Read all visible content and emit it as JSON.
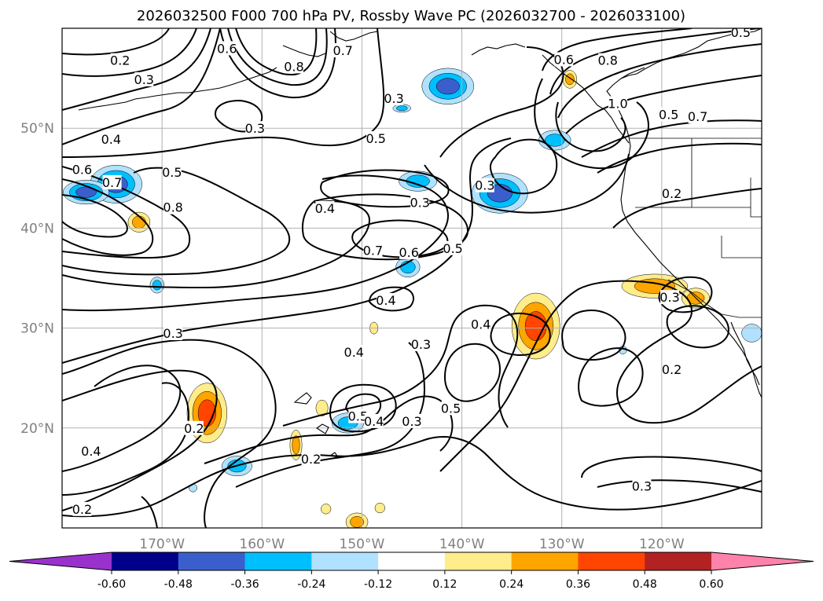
{
  "chart_data": {
    "type": "map-contour",
    "title": "2026032500 F000 700 hPa PV, Rossby Wave PC (2026032700 - 2026033100)",
    "lon_range": [
      -180,
      -110
    ],
    "lat_range": [
      10,
      60
    ],
    "lon_ticks": [
      {
        "value": -170,
        "label": "170°W"
      },
      {
        "value": -160,
        "label": "160°W"
      },
      {
        "value": -150,
        "label": "150°W"
      },
      {
        "value": -140,
        "label": "140°W"
      },
      {
        "value": -130,
        "label": "130°W"
      },
      {
        "value": -120,
        "label": "120°W"
      }
    ],
    "lat_ticks": [
      {
        "value": 20,
        "label": "20°N"
      },
      {
        "value": 30,
        "label": "30°N"
      },
      {
        "value": 40,
        "label": "40°N"
      },
      {
        "value": 50,
        "label": "50°N"
      }
    ],
    "colorbar": {
      "boundaries": [
        "-0.60",
        "-0.48",
        "-0.36",
        "-0.24",
        "-0.12",
        "0.12",
        "0.24",
        "0.36",
        "0.48",
        "0.60"
      ],
      "colors": [
        "#9932cc",
        "#00008b",
        "#3a5fcd",
        "#00bfff",
        "#b0e2ff",
        "#ffffff",
        "#ffec8b",
        "#ffa500",
        "#ff4500",
        "#b22222",
        "#ff82ab"
      ],
      "extend": "both"
    },
    "contour_labels": [
      {
        "text": "0.2",
        "lon": -174.2,
        "lat": 56.8
      },
      {
        "text": "0.3",
        "lon": -171.8,
        "lat": 54.9
      },
      {
        "text": "0.6",
        "lon": -163.5,
        "lat": 58.0
      },
      {
        "text": "0.8",
        "lon": -156.8,
        "lat": 56.2
      },
      {
        "text": "0.7",
        "lon": -151.9,
        "lat": 57.8
      },
      {
        "text": "0.3",
        "lon": -160.7,
        "lat": 50.0
      },
      {
        "text": "0.3",
        "lon": -146.8,
        "lat": 53.0
      },
      {
        "text": "0.5",
        "lon": -148.6,
        "lat": 49.0
      },
      {
        "text": "0.4",
        "lon": -175.1,
        "lat": 48.9
      },
      {
        "text": "0.6",
        "lon": -178.0,
        "lat": 45.9
      },
      {
        "text": "0.7",
        "lon": -175.0,
        "lat": 44.6
      },
      {
        "text": "0.5",
        "lon": -169.0,
        "lat": 45.6
      },
      {
        "text": "0.8",
        "lon": -168.9,
        "lat": 42.1
      },
      {
        "text": "0.3",
        "lon": -144.2,
        "lat": 42.6
      },
      {
        "text": "0.3",
        "lon": -137.7,
        "lat": 44.3
      },
      {
        "text": "0.4",
        "lon": -153.7,
        "lat": 42.0
      },
      {
        "text": "0.7",
        "lon": -148.9,
        "lat": 37.8
      },
      {
        "text": "0.6",
        "lon": -145.3,
        "lat": 37.6
      },
      {
        "text": "0.5",
        "lon": -140.9,
        "lat": 38.0
      },
      {
        "text": "0.4",
        "lon": -147.6,
        "lat": 32.8
      },
      {
        "text": "0.4",
        "lon": -138.1,
        "lat": 30.4
      },
      {
        "text": "0.3",
        "lon": -144.1,
        "lat": 28.4
      },
      {
        "text": "0.4",
        "lon": -150.8,
        "lat": 27.6
      },
      {
        "text": "0.3",
        "lon": -168.9,
        "lat": 29.5
      },
      {
        "text": "0.5",
        "lon": -141.1,
        "lat": 22.0
      },
      {
        "text": "0.5",
        "lon": -150.4,
        "lat": 21.2
      },
      {
        "text": "0.4",
        "lon": -148.8,
        "lat": 20.7
      },
      {
        "text": "0.3",
        "lon": -145.0,
        "lat": 20.7
      },
      {
        "text": "0.2",
        "lon": -166.8,
        "lat": 20.0
      },
      {
        "text": "0.2",
        "lon": -155.1,
        "lat": 16.9
      },
      {
        "text": "0.4",
        "lon": -177.1,
        "lat": 17.7
      },
      {
        "text": "0.2",
        "lon": -178.0,
        "lat": 11.9
      },
      {
        "text": "0.3",
        "lon": -122.0,
        "lat": 14.2
      },
      {
        "text": "0.6",
        "lon": -129.8,
        "lat": 56.9
      },
      {
        "text": "0.8",
        "lon": -125.4,
        "lat": 56.8
      },
      {
        "text": "1.0",
        "lon": -124.4,
        "lat": 52.5
      },
      {
        "text": "0.5",
        "lon": -119.3,
        "lat": 51.4
      },
      {
        "text": "0.7",
        "lon": -116.4,
        "lat": 51.2
      },
      {
        "text": "0.2",
        "lon": -119.0,
        "lat": 43.5
      },
      {
        "text": "0.3",
        "lon": -119.2,
        "lat": 33.1
      },
      {
        "text": "0.2",
        "lon": -119.0,
        "lat": 25.9
      },
      {
        "text": "0.5",
        "lon": -112.1,
        "lat": 59.6
      }
    ],
    "anomaly_patches": [
      {
        "lon": -165.5,
        "lat": 21.5,
        "rx": 2.0,
        "ry": 3.0,
        "value": 0.4
      },
      {
        "lon": -132.6,
        "lat": 30.2,
        "rx": 2.4,
        "ry": 3.3,
        "value": 0.42
      },
      {
        "lon": -120.7,
        "lat": 34.2,
        "rx": 3.3,
        "ry": 1.2,
        "value": 0.28
      },
      {
        "lon": -116.6,
        "lat": 33.0,
        "rx": 1.4,
        "ry": 1.0,
        "value": 0.26
      },
      {
        "lon": -172.3,
        "lat": 40.6,
        "rx": 1.1,
        "ry": 1.0,
        "value": 0.3
      },
      {
        "lon": -129.2,
        "lat": 54.9,
        "rx": 0.7,
        "ry": 0.9,
        "value": 0.26
      },
      {
        "lon": -150.5,
        "lat": 10.6,
        "rx": 1.1,
        "ry": 0.9,
        "value": 0.3
      },
      {
        "lon": -156.6,
        "lat": 18.3,
        "rx": 0.6,
        "ry": 1.5,
        "value": 0.26
      },
      {
        "lon": -154.0,
        "lat": 22.0,
        "rx": 0.6,
        "ry": 0.8,
        "value": 0.16
      },
      {
        "lon": -148.8,
        "lat": 30.0,
        "rx": 0.4,
        "ry": 0.6,
        "value": 0.2
      },
      {
        "lon": -153.6,
        "lat": 11.9,
        "rx": 0.5,
        "ry": 0.5,
        "value": 0.16
      },
      {
        "lon": -148.2,
        "lat": 12.0,
        "rx": 0.5,
        "ry": 0.5,
        "value": 0.16
      },
      {
        "lon": -174.6,
        "lat": 44.4,
        "rx": 2.6,
        "ry": 1.9,
        "value": -0.44
      },
      {
        "lon": -177.6,
        "lat": 43.6,
        "rx": 2.3,
        "ry": 1.2,
        "value": -0.36
      },
      {
        "lon": -141.4,
        "lat": 54.2,
        "rx": 2.6,
        "ry": 1.8,
        "value": -0.36
      },
      {
        "lon": -136.2,
        "lat": 43.5,
        "rx": 2.8,
        "ry": 2.0,
        "value": -0.38
      },
      {
        "lon": -130.7,
        "lat": 48.8,
        "rx": 1.6,
        "ry": 1.0,
        "value": -0.3
      },
      {
        "lon": -144.4,
        "lat": 44.7,
        "rx": 1.9,
        "ry": 1.0,
        "value": -0.34
      },
      {
        "lon": -145.4,
        "lat": 36.1,
        "rx": 1.2,
        "ry": 1.0,
        "value": -0.3
      },
      {
        "lon": -151.4,
        "lat": 20.5,
        "rx": 1.6,
        "ry": 1.0,
        "value": -0.33
      },
      {
        "lon": -162.5,
        "lat": 16.2,
        "rx": 1.5,
        "ry": 1.0,
        "value": -0.33
      },
      {
        "lon": -170.5,
        "lat": 34.3,
        "rx": 0.7,
        "ry": 0.8,
        "value": -0.28
      },
      {
        "lon": -146.0,
        "lat": 52.0,
        "rx": 0.9,
        "ry": 0.4,
        "value": -0.26
      },
      {
        "lon": -111.0,
        "lat": 29.5,
        "rx": 1.0,
        "ry": 0.9,
        "value": -0.2
      },
      {
        "lon": -166.9,
        "lat": 14.0,
        "rx": 0.4,
        "ry": 0.4,
        "value": -0.14
      },
      {
        "lon": -123.9,
        "lat": 27.8,
        "rx": 0.4,
        "ry": 0.4,
        "value": -0.14
      }
    ]
  }
}
